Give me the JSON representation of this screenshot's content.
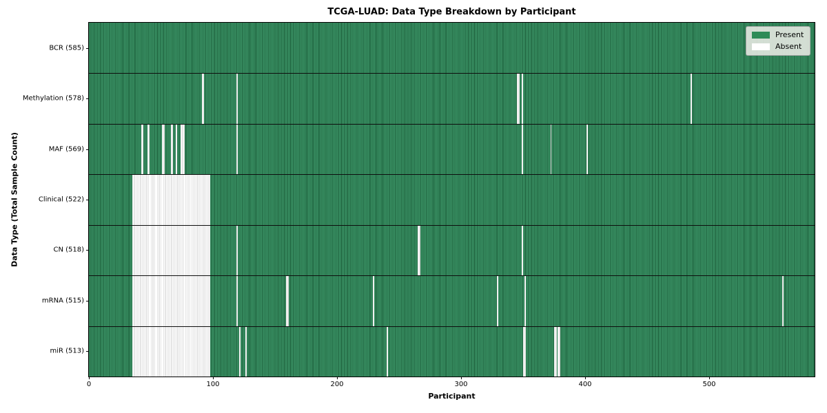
{
  "title": "TCGA-LUAD: Data Type Breakdown by Participant",
  "axes": {
    "xlabel": "Participant",
    "ylabel": "Data Type (Total Sample Count)"
  },
  "legend": {
    "present_label": "Present",
    "absent_label": "Absent",
    "position": "top-right"
  },
  "colors": {
    "present": "#2e8b57",
    "present_edge_dark": "#1b5b38",
    "absent": "#ffffff",
    "absent_edge": "#c9c9c9",
    "legend_bg": "#e9ebe5",
    "axis": "#000000"
  },
  "chart_data": {
    "type": "heatmap",
    "title": "TCGA-LUAD: Data Type Breakdown by Participant",
    "xlabel": "Participant",
    "ylabel": "Data Type (Total Sample Count)",
    "n_participants": 585,
    "x_ticks": [
      0,
      100,
      200,
      300,
      400,
      500
    ],
    "x_range": [
      0,
      585
    ],
    "grid": false,
    "cell_values": {
      "present": 1,
      "absent": 0
    },
    "rows": [
      {
        "name": "BCR",
        "label": "BCR (585)",
        "present_count": 585,
        "absent_count": 0,
        "absent_ranges": []
      },
      {
        "name": "Methylation",
        "label": "Methylation (578)",
        "present_count": 578,
        "absent_count": 7,
        "absent_ranges": [
          [
            91,
            92
          ],
          [
            119,
            119
          ],
          [
            345,
            346
          ],
          [
            349,
            349
          ],
          [
            485,
            485
          ]
        ]
      },
      {
        "name": "MAF",
        "label": "MAF (569)",
        "present_count": 569,
        "absent_count": 16,
        "absent_ranges": [
          [
            42,
            43
          ],
          [
            47,
            48
          ],
          [
            59,
            60
          ],
          [
            66,
            67
          ],
          [
            70,
            70
          ],
          [
            74,
            76
          ],
          [
            119,
            119
          ],
          [
            349,
            349
          ],
          [
            372,
            372
          ],
          [
            401,
            401
          ]
        ]
      },
      {
        "name": "Clinical",
        "label": "Clinical (522)",
        "present_count": 522,
        "absent_count": 63,
        "absent_ranges": [
          [
            35,
            97
          ]
        ]
      },
      {
        "name": "CN",
        "label": "CN (518)",
        "present_count": 518,
        "absent_count": 67,
        "absent_ranges": [
          [
            35,
            97
          ],
          [
            119,
            119
          ],
          [
            265,
            266
          ],
          [
            349,
            349
          ]
        ]
      },
      {
        "name": "mRNA",
        "label": "mRNA (515)",
        "present_count": 515,
        "absent_count": 70,
        "absent_ranges": [
          [
            35,
            97
          ],
          [
            119,
            119
          ],
          [
            159,
            160
          ],
          [
            229,
            229
          ],
          [
            329,
            329
          ],
          [
            351,
            351
          ],
          [
            559,
            559
          ]
        ]
      },
      {
        "name": "miR",
        "label": "miR (513)",
        "present_count": 513,
        "absent_count": 72,
        "absent_ranges": [
          [
            35,
            97
          ],
          [
            121,
            121
          ],
          [
            126,
            126
          ],
          [
            240,
            240
          ],
          [
            350,
            351
          ],
          [
            375,
            376
          ],
          [
            378,
            379
          ]
        ]
      }
    ]
  }
}
